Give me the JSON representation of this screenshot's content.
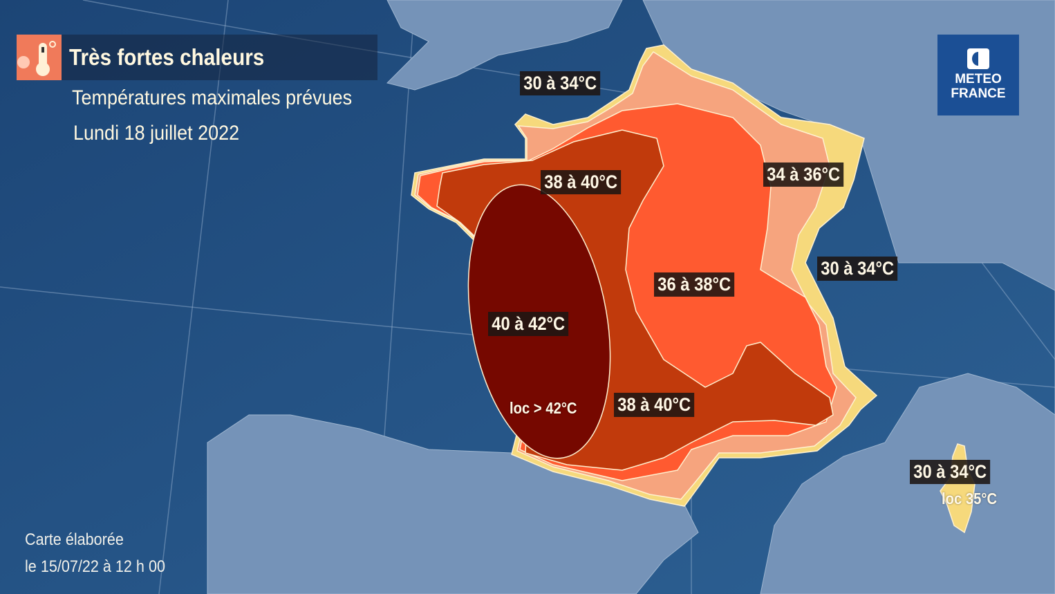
{
  "header": {
    "icon": "thermometer-sun-icon",
    "title": "Très fortes chaleurs",
    "subtitle": "Températures maximales prévues",
    "date": "Lundi 18 juillet 2022"
  },
  "logo": {
    "line1": "METEO",
    "line2": "FRANCE"
  },
  "footer": {
    "line1": "Carte élaborée",
    "line2": "le 15/07/22 à 12 h 00"
  },
  "zones": {
    "colors": {
      "30-34": "#f6d97c",
      "34-36": "#f6a47e",
      "36-38": "#ff5a30",
      "38-40": "#c13a0c",
      "40-42": "#760800",
      "sea": "#1f4a7a",
      "land": "#7593b8"
    },
    "labels": [
      {
        "id": "north",
        "text": "30 à 34°C"
      },
      {
        "id": "west",
        "text": "38 à 40°C"
      },
      {
        "id": "east",
        "text": "34 à 36°C"
      },
      {
        "id": "alps",
        "text": "30 à 34°C"
      },
      {
        "id": "center",
        "text": "36 à 38°C"
      },
      {
        "id": "southwest",
        "text": "40 à 42°C"
      },
      {
        "id": "south",
        "text": "38 à 40°C"
      },
      {
        "id": "corsica",
        "text": "30 à 34°C"
      }
    ],
    "local": [
      {
        "id": "landes",
        "text": "loc > 42°C"
      },
      {
        "id": "corsica",
        "text": "loc 35°C"
      }
    ]
  }
}
